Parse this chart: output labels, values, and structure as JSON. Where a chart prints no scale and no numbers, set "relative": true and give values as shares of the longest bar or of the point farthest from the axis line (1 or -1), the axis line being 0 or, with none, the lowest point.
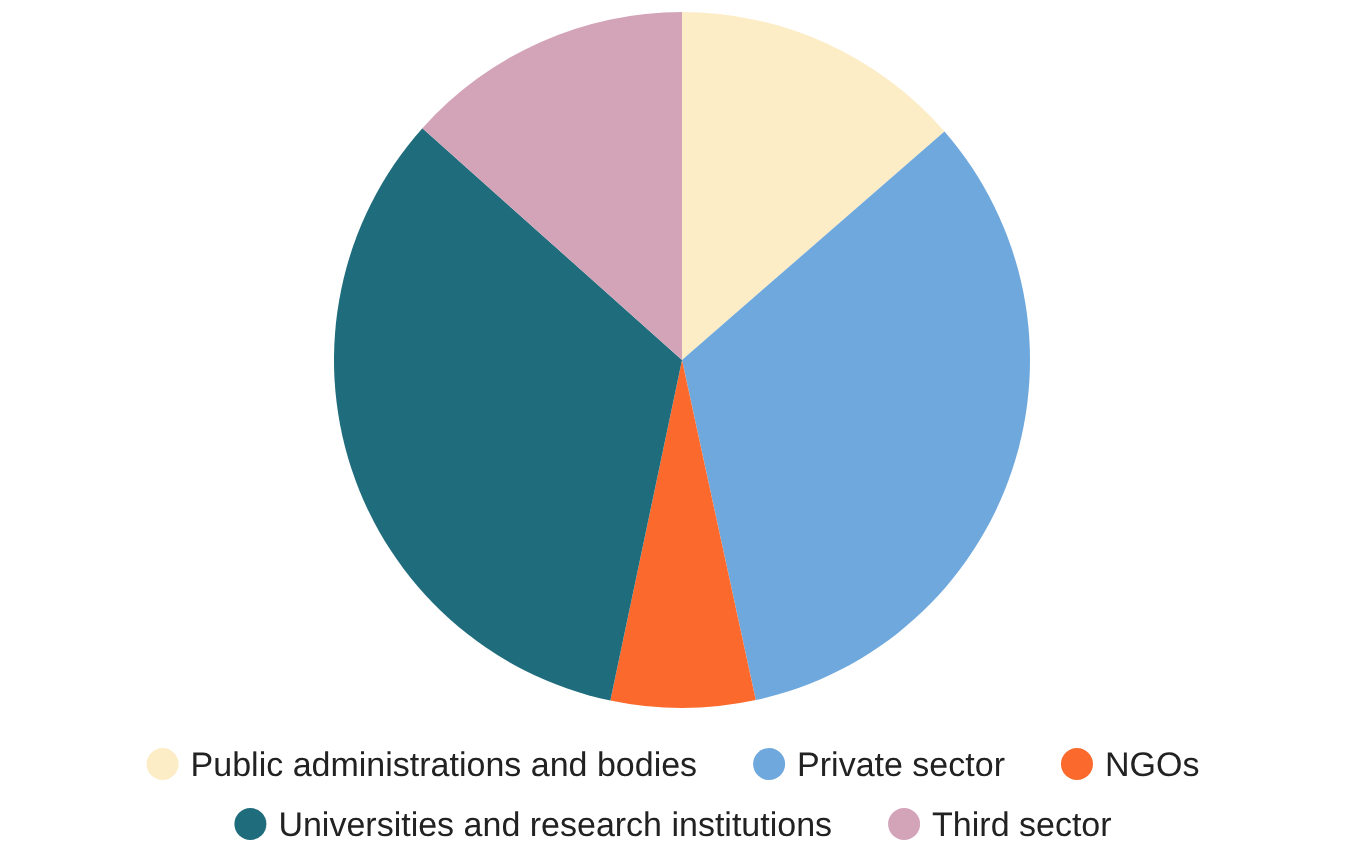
{
  "chart_data": {
    "type": "pie",
    "relative": true,
    "categories": [
      "Public administrations and bodies",
      "Private sector",
      "NGOs",
      "Universities and research institutions",
      "Third sector"
    ],
    "values": [
      13.6,
      33.0,
      6.7,
      33.3,
      13.4
    ],
    "colors": [
      "#fdedc6",
      "#6fa8dc",
      "#fb6a2c",
      "#1f6c7c",
      "#d3a4b8"
    ],
    "legend": "bottom"
  }
}
